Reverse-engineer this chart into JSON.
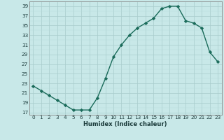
{
  "x": [
    0,
    1,
    2,
    3,
    4,
    5,
    6,
    7,
    8,
    9,
    10,
    11,
    12,
    13,
    14,
    15,
    16,
    17,
    18,
    19,
    20,
    21,
    22,
    23
  ],
  "y": [
    22.5,
    21.5,
    20.5,
    19.5,
    18.5,
    17.5,
    17.5,
    17.5,
    20.0,
    24.0,
    28.5,
    31.0,
    33.0,
    34.5,
    35.5,
    36.5,
    38.5,
    39.0,
    39.0,
    36.0,
    35.5,
    34.5,
    29.5,
    27.5
  ],
  "xlabel": "Humidex (Indice chaleur)",
  "xlim": [
    -0.5,
    23.5
  ],
  "ylim": [
    16.5,
    40.0
  ],
  "yticks": [
    17,
    19,
    21,
    23,
    25,
    27,
    29,
    31,
    33,
    35,
    37,
    39
  ],
  "xticks": [
    0,
    1,
    2,
    3,
    4,
    5,
    6,
    7,
    8,
    9,
    10,
    11,
    12,
    13,
    14,
    15,
    16,
    17,
    18,
    19,
    20,
    21,
    22,
    23
  ],
  "line_color": "#1a6b5a",
  "marker_color": "#1a6b5a",
  "bg_color": "#c8e8e8",
  "grid_major_color": "#a8cccc",
  "grid_minor_color": "#b8dcdc",
  "spine_color": "#888888",
  "tick_color": "#1a3a3a",
  "xlabel_color": "#1a3a3a",
  "xlabel_fontsize": 6.0,
  "tick_fontsize": 5.2,
  "linewidth": 1.0,
  "markersize": 2.2
}
